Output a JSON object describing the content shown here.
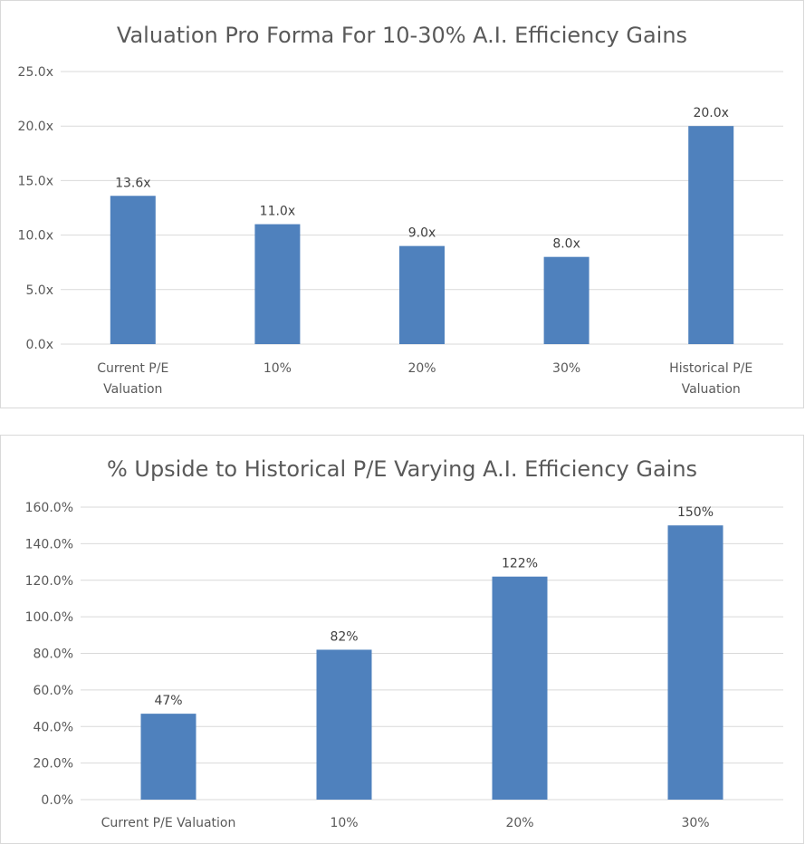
{
  "colors": {
    "bar": "#4f81bd",
    "grid": "#d9d9d9",
    "axis_text": "#595959",
    "label_text": "#404040"
  },
  "chart_data": [
    {
      "type": "bar",
      "title": "Valuation Pro Forma For 10-30% A.I. Efficiency Gains",
      "categories": [
        [
          "Current P/E",
          "Valuation"
        ],
        [
          "10%"
        ],
        [
          "20%"
        ],
        [
          "30%"
        ],
        [
          "Historical P/E",
          "Valuation"
        ]
      ],
      "values": [
        13.6,
        11.0,
        9.0,
        8.0,
        20.0
      ],
      "data_labels": [
        "13.6x",
        "11.0x",
        "9.0x",
        "8.0x",
        "20.0x"
      ],
      "ylim": [
        0,
        25
      ],
      "yticks": [
        0,
        5,
        10,
        15,
        20,
        25
      ],
      "ytick_labels": [
        "0.0x",
        "5.0x",
        "10.0x",
        "15.0x",
        "20.0x",
        "25.0x"
      ],
      "xlabel": "",
      "ylabel": "",
      "grid": true,
      "legend": "none"
    },
    {
      "type": "bar",
      "title": "% Upside to Historical P/E Varying A.I. Efficiency Gains",
      "categories": [
        [
          "Current P/E Valuation"
        ],
        [
          "10%"
        ],
        [
          "20%"
        ],
        [
          "30%"
        ]
      ],
      "values": [
        47,
        82,
        122,
        150
      ],
      "data_labels": [
        "47%",
        "82%",
        "122%",
        "150%"
      ],
      "ylim": [
        0,
        160
      ],
      "yticks": [
        0,
        20,
        40,
        60,
        80,
        100,
        120,
        140,
        160
      ],
      "ytick_labels": [
        "0.0%",
        "20.0%",
        "40.0%",
        "60.0%",
        "80.0%",
        "100.0%",
        "120.0%",
        "140.0%",
        "160.0%"
      ],
      "xlabel": "",
      "ylabel": "",
      "grid": true,
      "legend": "none"
    }
  ]
}
